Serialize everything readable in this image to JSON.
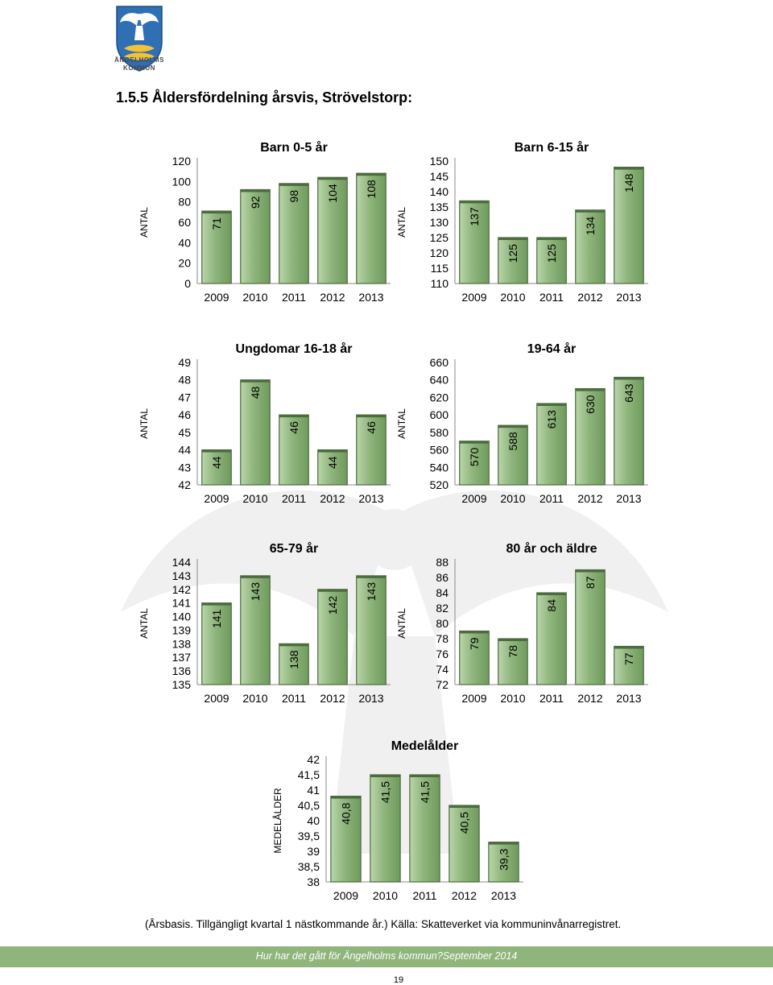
{
  "header": {
    "logo_text_line1": "ÄNGELHOLMS",
    "logo_text_line2": "KOMMUN",
    "heading": "1.5.5 Åldersfördelning årsvis, Strövelstorp:"
  },
  "colors": {
    "bar_fill": "#8fb57c",
    "bar_edge": "#4d6b3f",
    "footer_bar": "#8fb57c"
  },
  "chart_data": [
    {
      "type": "bar",
      "title": "Barn 0-5 år",
      "ylabel": "ANTAL",
      "categories": [
        "2009",
        "2010",
        "2011",
        "2012",
        "2013"
      ],
      "values": [
        71,
        92,
        98,
        104,
        108
      ],
      "value_labels": [
        "71",
        "92",
        "98",
        "104",
        "108"
      ],
      "ylim": [
        0,
        120
      ],
      "yticks": [
        "0",
        "20",
        "40",
        "60",
        "80",
        "100",
        "120"
      ]
    },
    {
      "type": "bar",
      "title": "Barn 6-15 år",
      "ylabel": "ANTAL",
      "categories": [
        "2009",
        "2010",
        "2011",
        "2012",
        "2013"
      ],
      "values": [
        137,
        125,
        125,
        134,
        148
      ],
      "value_labels": [
        "137",
        "125",
        "125",
        "134",
        "148"
      ],
      "ylim": [
        110,
        150
      ],
      "yticks": [
        "110",
        "115",
        "120",
        "125",
        "130",
        "135",
        "140",
        "145",
        "150"
      ]
    },
    {
      "type": "bar",
      "title": "Ungdomar 16-18 år",
      "ylabel": "ANTAL",
      "categories": [
        "2009",
        "2010",
        "2011",
        "2012",
        "2013"
      ],
      "values": [
        44,
        48,
        46,
        44,
        46
      ],
      "value_labels": [
        "44",
        "48",
        "46",
        "44",
        "46"
      ],
      "ylim": [
        42,
        49
      ],
      "yticks": [
        "42",
        "43",
        "44",
        "45",
        "46",
        "47",
        "48",
        "49"
      ]
    },
    {
      "type": "bar",
      "title": "19-64 år",
      "ylabel": "ANTAL",
      "categories": [
        "2009",
        "2010",
        "2011",
        "2012",
        "2013"
      ],
      "values": [
        570,
        588,
        613,
        630,
        643
      ],
      "value_labels": [
        "570",
        "588",
        "613",
        "630",
        "643"
      ],
      "ylim": [
        520,
        660
      ],
      "yticks": [
        "520",
        "540",
        "560",
        "580",
        "600",
        "620",
        "640",
        "660"
      ]
    },
    {
      "type": "bar",
      "title": "65-79 år",
      "ylabel": "ANTAL",
      "categories": [
        "2009",
        "2010",
        "2011",
        "2012",
        "2013"
      ],
      "values": [
        141,
        143,
        138,
        142,
        143
      ],
      "value_labels": [
        "141",
        "143",
        "138",
        "142",
        "143"
      ],
      "ylim": [
        135,
        144
      ],
      "yticks": [
        "135",
        "136",
        "137",
        "138",
        "139",
        "140",
        "141",
        "142",
        "143",
        "144"
      ]
    },
    {
      "type": "bar",
      "title": "80 år och äldre",
      "ylabel": "ANTAL",
      "categories": [
        "2009",
        "2010",
        "2011",
        "2012",
        "2013"
      ],
      "values": [
        79,
        78,
        84,
        87,
        77
      ],
      "value_labels": [
        "79",
        "78",
        "84",
        "87",
        "77"
      ],
      "ylim": [
        72,
        88
      ],
      "yticks": [
        "72",
        "74",
        "76",
        "78",
        "80",
        "82",
        "84",
        "86",
        "88"
      ]
    },
    {
      "type": "bar",
      "title": "Medelålder",
      "ylabel": "MEDELÅLDER",
      "categories": [
        "2009",
        "2010",
        "2011",
        "2012",
        "2013"
      ],
      "values": [
        40.8,
        41.5,
        41.5,
        40.5,
        39.3
      ],
      "value_labels": [
        "40,8",
        "41,5",
        "41,5",
        "40,5",
        "39,3"
      ],
      "ylim": [
        38,
        42
      ],
      "yticks": [
        "38",
        "38,5",
        "39",
        "39,5",
        "40",
        "40,5",
        "41",
        "41,5",
        "42"
      ]
    }
  ],
  "footnote": "(Årsbasis. Tillgängligt kvartal 1 nästkommande år.) Källa: Skatteverket via kommuninvånarregistret.",
  "footer": "Hur har det gått för Ängelholms kommun?September 2014",
  "page_number": "19"
}
